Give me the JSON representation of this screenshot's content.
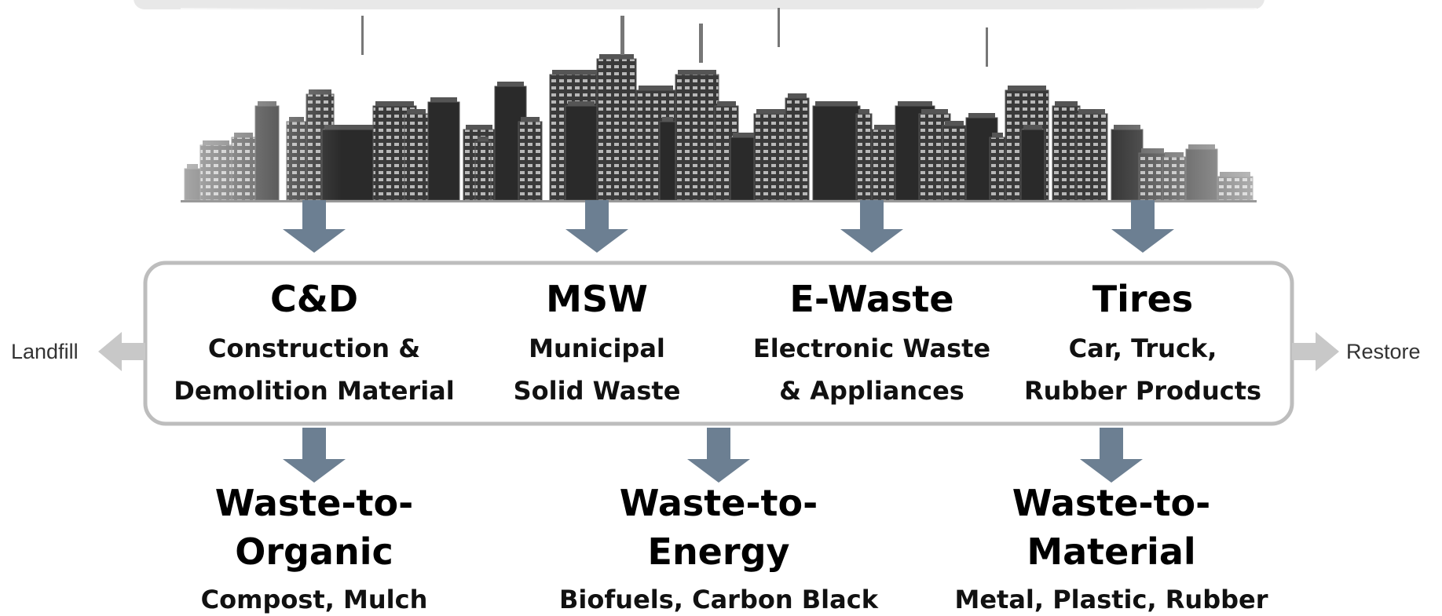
{
  "streams": [
    {
      "title": "C&D",
      "lines": [
        "Construction &",
        "Demolition Material"
      ]
    },
    {
      "title": "MSW",
      "lines": [
        "Municipal",
        "Solid Waste"
      ]
    },
    {
      "title": "E-Waste",
      "lines": [
        "Electronic Waste",
        "& Appliances"
      ]
    },
    {
      "title": "Tires",
      "lines": [
        "Car, Truck,",
        "Rubber Products"
      ]
    }
  ],
  "left_label": "Landfill",
  "right_label": "Restore",
  "outputs": [
    {
      "title": [
        "Waste-to-",
        "Organic"
      ],
      "detail": "Compost, Mulch"
    },
    {
      "title": [
        "Waste-to-",
        "Energy"
      ],
      "detail": "Biofuels, Carbon Black"
    },
    {
      "title": [
        "Waste-to-",
        "Material"
      ],
      "detail": "Metal, Plastic, Rubber"
    }
  ]
}
